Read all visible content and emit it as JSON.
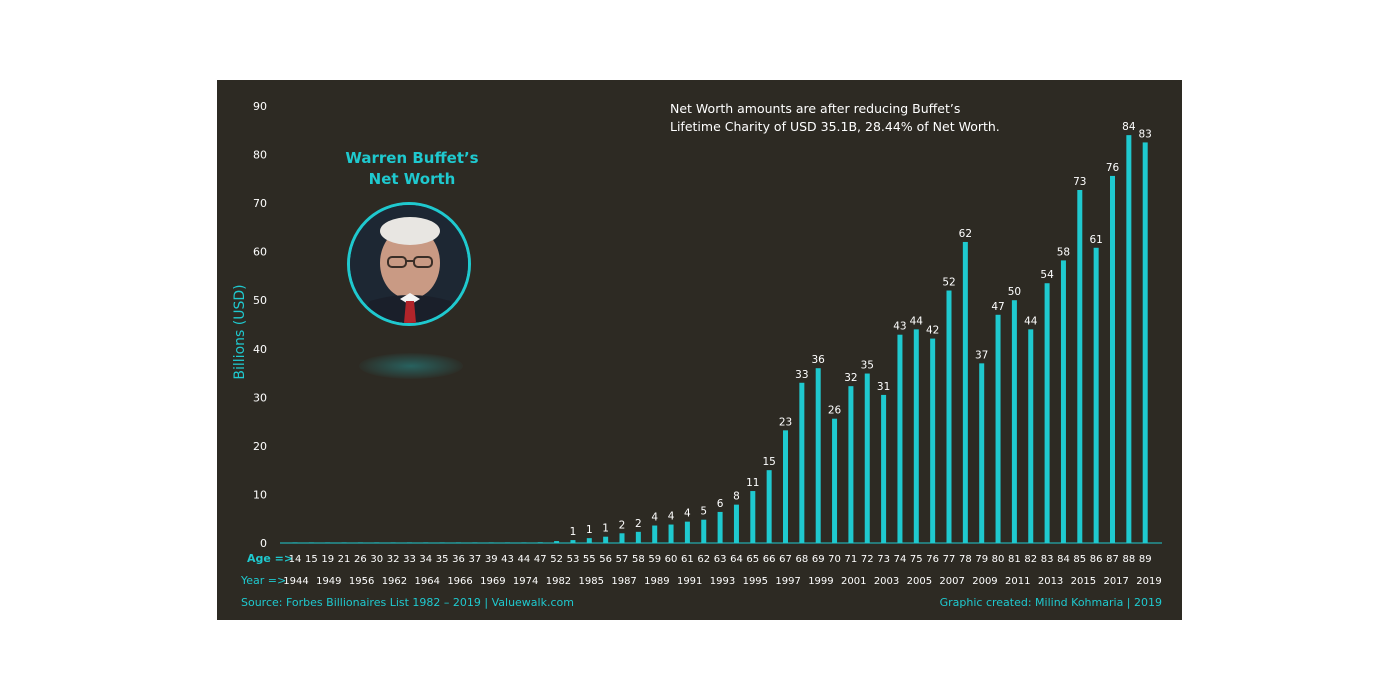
{
  "colors": {
    "background": "#2d2a23",
    "accent": "#1fc9cf",
    "text": "#ffffff"
  },
  "note": {
    "line1": "Net Worth amounts are after reducing Buffet’s",
    "line2": "Lifetime Charity of USD 35.1B, 28.44% of Net Worth."
  },
  "chart_title": {
    "line1": "Warren Buffet’s",
    "line2": "Net Worth"
  },
  "portrait_icon": "portrait-photo",
  "source": "Source: Forbes Billionaires List 1982 – 2019 | Valuewalk.com",
  "credit": "Graphic created: Milind Kohmaria | 2019",
  "chart_data": {
    "type": "bar",
    "ylabel": "Billions (USD)",
    "ylim": [
      0,
      90
    ],
    "yticks": [
      "0",
      "10",
      "20",
      "30",
      "40",
      "50",
      "60",
      "70",
      "80",
      "90"
    ],
    "grid": false,
    "age_label": "Age =>",
    "year_label": "Year =>",
    "ages": [
      "14",
      "15",
      "19",
      "21",
      "26",
      "30",
      "32",
      "33",
      "34",
      "35",
      "36",
      "37",
      "39",
      "43",
      "44",
      "47",
      "52",
      "53",
      "55",
      "56",
      "57",
      "58",
      "59",
      "60",
      "61",
      "62",
      "63",
      "64",
      "65",
      "66",
      "67",
      "68",
      "69",
      "70",
      "71",
      "72",
      "73",
      "74",
      "75",
      "76",
      "77",
      "78",
      "79",
      "80",
      "81",
      "82",
      "83",
      "84",
      "85",
      "86",
      "87",
      "88",
      "89"
    ],
    "year_ticks": [
      "1944",
      "1949",
      "1956",
      "1962",
      "1964",
      "1966",
      "1969",
      "1974",
      "1982",
      "1985",
      "1987",
      "1989",
      "1991",
      "1993",
      "1995",
      "1997",
      "1999",
      "2001",
      "2003",
      "2005",
      "2007",
      "2009",
      "2011",
      "2013",
      "2015",
      "2017",
      "2019"
    ],
    "values": [
      0,
      0,
      0.01,
      0.02,
      0.02,
      0.03,
      0.03,
      0.04,
      0.04,
      0.05,
      0.05,
      0.06,
      0.07,
      0.1,
      0.1,
      0.15,
      0.4,
      0.6,
      1.0,
      1.3,
      2.0,
      2.3,
      3.6,
      3.8,
      4.4,
      4.8,
      6.4,
      7.9,
      10.7,
      15.0,
      23.2,
      33.0,
      36.0,
      25.6,
      32.3,
      34.9,
      30.5,
      42.9,
      44.0,
      42.1,
      52.0,
      62.0,
      37.0,
      47.0,
      50.0,
      44.0,
      53.5,
      58.2,
      72.7,
      60.8,
      75.6,
      84.0,
      82.5
    ],
    "data_labels": [
      "",
      "",
      "",
      "",
      "",
      "",
      "",
      "",
      "",
      "",
      "",
      "",
      "",
      "",
      "",
      "",
      "",
      "1",
      "1",
      "1",
      "2",
      "2",
      "4",
      "4",
      "4",
      "5",
      "6",
      "8",
      "11",
      "15",
      "23",
      "33",
      "36",
      "26",
      "32",
      "35",
      "31",
      "43",
      "44",
      "42",
      "52",
      "62",
      "37",
      "47",
      "50",
      "44",
      "54",
      "58",
      "73",
      "61",
      "76",
      "84",
      "83"
    ]
  }
}
